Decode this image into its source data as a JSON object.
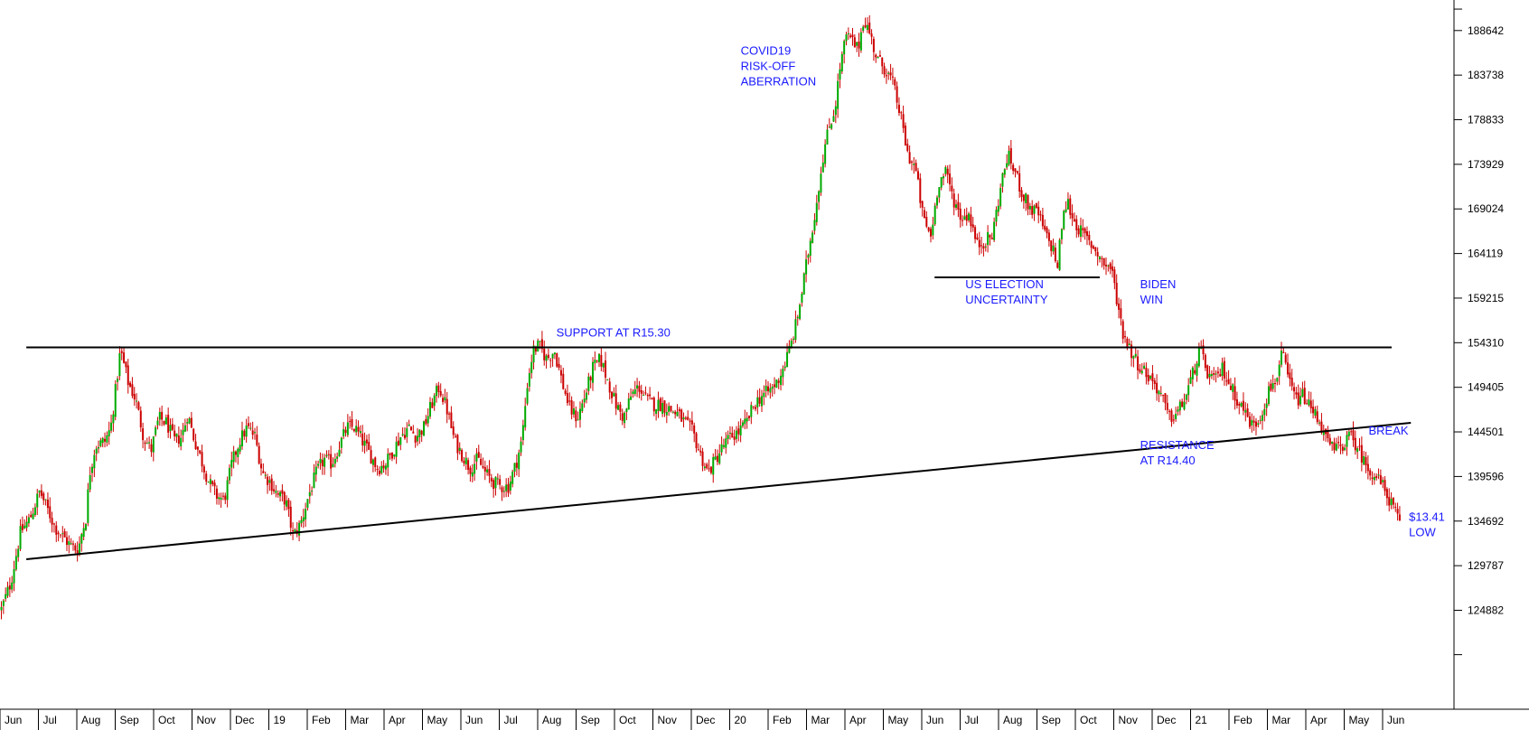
{
  "chart_data": {
    "type": "candlestick",
    "colors": {
      "background": "#ffffff",
      "up_candle": "#00aa00",
      "down_candle": "#cc0000",
      "trendline": "#000000",
      "annotation_text": "#1a1aff",
      "axis": "#000000"
    },
    "x_axis": {
      "tick_labels": [
        "Jun",
        "Jul",
        "Aug",
        "Sep",
        "Oct",
        "Nov",
        "Dec",
        "19",
        "Feb",
        "Mar",
        "Apr",
        "May",
        "Jun",
        "Jul",
        "Aug",
        "Sep",
        "Oct",
        "Nov",
        "Dec",
        "20",
        "Feb",
        "Mar",
        "Apr",
        "May",
        "Jun",
        "Jul",
        "Aug",
        "Sep",
        "Oct",
        "Nov",
        "Dec",
        "21",
        "Feb",
        "Mar",
        "Apr",
        "May",
        "Jun"
      ],
      "range": [
        0,
        36.8
      ]
    },
    "y_axis": {
      "position": "right",
      "tick_labels": [
        "188642",
        "183738",
        "178833",
        "173929",
        "169024",
        "164119",
        "159215",
        "154310",
        "149405",
        "144501",
        "139596",
        "134692",
        "129787",
        "124882"
      ],
      "range": [
        114000,
        192000
      ]
    },
    "price_series": [
      [
        0,
        125.0
      ],
      [
        0.25,
        128.0
      ],
      [
        0.5,
        133.5
      ],
      [
        0.75,
        135.0
      ],
      [
        1.0,
        138.0
      ],
      [
        1.2,
        136.0
      ],
      [
        1.4,
        134.0
      ],
      [
        1.6,
        133.0
      ],
      [
        1.8,
        132.0
      ],
      [
        2.0,
        131.5
      ],
      [
        2.1,
        133.5
      ],
      [
        2.2,
        135.0
      ],
      [
        2.3,
        140.0
      ],
      [
        2.45,
        143.0
      ],
      [
        2.7,
        143.5
      ],
      [
        2.85,
        145.0
      ],
      [
        3.0,
        150.0
      ],
      [
        3.1,
        153.5
      ],
      [
        3.3,
        150.0
      ],
      [
        3.5,
        148.0
      ],
      [
        3.7,
        144.0
      ],
      [
        3.9,
        142.5
      ],
      [
        4.1,
        146.0
      ],
      [
        4.3,
        145.5
      ],
      [
        4.5,
        143.5
      ],
      [
        4.7,
        144.0
      ],
      [
        4.85,
        146.5
      ],
      [
        5.0,
        144.0
      ],
      [
        5.2,
        141.5
      ],
      [
        5.4,
        139.0
      ],
      [
        5.6,
        137.5
      ],
      [
        5.8,
        137.0
      ],
      [
        6.0,
        141.0
      ],
      [
        6.2,
        143.5
      ],
      [
        6.4,
        145.0
      ],
      [
        6.6,
        144.0
      ],
      [
        6.8,
        140.0
      ],
      [
        7.0,
        139.0
      ],
      [
        7.2,
        137.5
      ],
      [
        7.4,
        137.0
      ],
      [
        7.6,
        133.0
      ],
      [
        7.8,
        134.5
      ],
      [
        8.0,
        137.5
      ],
      [
        8.2,
        140.0
      ],
      [
        8.4,
        141.5
      ],
      [
        8.6,
        141.0
      ],
      [
        8.8,
        143.0
      ],
      [
        9.0,
        145.0
      ],
      [
        9.2,
        145.0
      ],
      [
        9.4,
        143.5
      ],
      [
        9.6,
        142.0
      ],
      [
        9.8,
        140.5
      ],
      [
        10.0,
        141.0
      ],
      [
        10.2,
        142.5
      ],
      [
        10.4,
        144.0
      ],
      [
        10.6,
        145.0
      ],
      [
        10.8,
        144.0
      ],
      [
        11.0,
        145.0
      ],
      [
        11.2,
        147.5
      ],
      [
        11.4,
        149.5
      ],
      [
        11.6,
        147.0
      ],
      [
        11.8,
        143.5
      ],
      [
        12.0,
        142.0
      ],
      [
        12.2,
        140.5
      ],
      [
        12.4,
        141.5
      ],
      [
        12.6,
        140.0
      ],
      [
        12.8,
        139.0
      ],
      [
        13.0,
        138.5
      ],
      [
        13.2,
        138.5
      ],
      [
        13.4,
        141.0
      ],
      [
        13.55,
        143.5
      ],
      [
        13.7,
        150.0
      ],
      [
        13.85,
        153.5
      ],
      [
        14.0,
        154.0
      ],
      [
        14.2,
        152.5
      ],
      [
        14.4,
        153.5
      ],
      [
        14.6,
        150.0
      ],
      [
        14.8,
        147.0
      ],
      [
        15.0,
        146.0
      ],
      [
        15.2,
        148.5
      ],
      [
        15.4,
        151.5
      ],
      [
        15.6,
        152.5
      ],
      [
        15.8,
        150.0
      ],
      [
        16.0,
        147.5
      ],
      [
        16.2,
        146.0
      ],
      [
        16.4,
        148.5
      ],
      [
        16.6,
        149.5
      ],
      [
        16.8,
        148.0
      ],
      [
        17.0,
        147.5
      ],
      [
        17.2,
        147.5
      ],
      [
        17.4,
        147.0
      ],
      [
        17.6,
        146.5
      ],
      [
        17.8,
        145.5
      ],
      [
        18.0,
        144.5
      ],
      [
        18.2,
        142.0
      ],
      [
        18.4,
        140.0
      ],
      [
        18.6,
        141.5
      ],
      [
        18.8,
        143.0
      ],
      [
        19.0,
        144.0
      ],
      [
        19.2,
        144.5
      ],
      [
        19.4,
        145.5
      ],
      [
        19.6,
        147.5
      ],
      [
        19.8,
        148.5
      ],
      [
        20.0,
        149.0
      ],
      [
        20.2,
        150.0
      ],
      [
        20.4,
        152.0
      ],
      [
        20.55,
        154.0
      ],
      [
        20.7,
        156.5
      ],
      [
        20.85,
        160.0
      ],
      [
        21.0,
        164.0
      ],
      [
        21.2,
        169.0
      ],
      [
        21.4,
        175.0
      ],
      [
        21.55,
        178.0
      ],
      [
        21.7,
        180.0
      ],
      [
        21.85,
        185.0
      ],
      [
        22.0,
        188.0
      ],
      [
        22.15,
        187.5
      ],
      [
        22.3,
        186.5
      ],
      [
        22.45,
        190.0
      ],
      [
        22.6,
        188.5
      ],
      [
        22.8,
        185.5
      ],
      [
        23.0,
        184.5
      ],
      [
        23.2,
        183.0
      ],
      [
        23.4,
        179.5
      ],
      [
        23.6,
        175.0
      ],
      [
        23.8,
        173.5
      ],
      [
        24.0,
        168.0
      ],
      [
        24.2,
        166.0
      ],
      [
        24.4,
        172.0
      ],
      [
        24.6,
        173.0
      ],
      [
        24.8,
        170.0
      ],
      [
        25.0,
        168.0
      ],
      [
        25.2,
        168.5
      ],
      [
        25.4,
        165.0
      ],
      [
        25.6,
        165.5
      ],
      [
        25.8,
        166.0
      ],
      [
        26.0,
        171.0
      ],
      [
        26.2,
        175.0
      ],
      [
        26.4,
        173.0
      ],
      [
        26.6,
        170.5
      ],
      [
        26.8,
        169.0
      ],
      [
        27.0,
        168.5
      ],
      [
        27.2,
        166.0
      ],
      [
        27.4,
        164.5
      ],
      [
        27.5,
        162.5
      ],
      [
        27.6,
        167.0
      ],
      [
        27.75,
        170.0
      ],
      [
        27.9,
        168.0
      ],
      [
        28.1,
        166.5
      ],
      [
        28.3,
        165.5
      ],
      [
        28.5,
        164.5
      ],
      [
        28.7,
        163.0
      ],
      [
        28.9,
        162.5
      ],
      [
        29.05,
        159.0
      ],
      [
        29.2,
        155.5
      ],
      [
        29.4,
        153.5
      ],
      [
        29.6,
        152.0
      ],
      [
        29.8,
        151.0
      ],
      [
        30.0,
        150.0
      ],
      [
        30.2,
        148.5
      ],
      [
        30.4,
        146.0
      ],
      [
        30.6,
        146.5
      ],
      [
        30.8,
        148.0
      ],
      [
        31.0,
        150.5
      ],
      [
        31.2,
        153.5
      ],
      [
        31.4,
        151.0
      ],
      [
        31.6,
        150.0
      ],
      [
        31.8,
        151.5
      ],
      [
        32.0,
        149.5
      ],
      [
        32.2,
        148.0
      ],
      [
        32.4,
        146.5
      ],
      [
        32.6,
        145.0
      ],
      [
        32.8,
        146.5
      ],
      [
        33.0,
        149.0
      ],
      [
        33.2,
        150.5
      ],
      [
        33.35,
        153.0
      ],
      [
        33.5,
        150.5
      ],
      [
        33.7,
        148.0
      ],
      [
        33.9,
        148.5
      ],
      [
        34.1,
        147.0
      ],
      [
        34.3,
        146.0
      ],
      [
        34.5,
        143.5
      ],
      [
        34.7,
        142.5
      ],
      [
        34.9,
        143.0
      ],
      [
        35.1,
        144.0
      ],
      [
        35.3,
        143.0
      ],
      [
        35.5,
        141.0
      ],
      [
        35.7,
        140.0
      ],
      [
        35.9,
        139.0
      ],
      [
        36.1,
        137.5
      ],
      [
        36.3,
        135.5
      ],
      [
        36.45,
        134.1
      ]
    ],
    "trendlines": [
      {
        "name": "support",
        "from": [
          0.65,
          153.8
        ],
        "to": [
          36.2,
          153.8
        ]
      },
      {
        "name": "rising-trendline",
        "from": [
          0.65,
          130.5
        ],
        "to": [
          36.7,
          145.5
        ]
      },
      {
        "name": "us-election-line",
        "from": [
          24.3,
          161.5
        ],
        "to": [
          28.6,
          161.5
        ]
      }
    ],
    "annotations": [
      {
        "name": "covid-annotation",
        "lines": [
          "COVID19",
          "RISK-OFF",
          "ABERRATION"
        ],
        "at": [
          19.25,
          186.0
        ]
      },
      {
        "name": "support-annotation",
        "lines": [
          "SUPPORT AT R15.30"
        ],
        "at": [
          14.45,
          155.0
        ]
      },
      {
        "name": "us-election-annotation",
        "lines": [
          "US ELECTION",
          "UNCERTAINTY"
        ],
        "at": [
          25.1,
          160.3
        ]
      },
      {
        "name": "biden-annotation",
        "lines": [
          "BIDEN",
          "WIN"
        ],
        "at": [
          29.65,
          160.3
        ]
      },
      {
        "name": "resistance-annotation",
        "lines": [
          "RESISTANCE",
          "AT R14.40"
        ],
        "at": [
          29.65,
          142.6
        ]
      },
      {
        "name": "break-annotation",
        "lines": [
          "BREAK"
        ],
        "at": [
          35.6,
          144.2
        ]
      },
      {
        "name": "low-annotation",
        "lines": [
          "$13.41",
          "LOW"
        ],
        "at": [
          36.65,
          134.7
        ]
      }
    ]
  }
}
